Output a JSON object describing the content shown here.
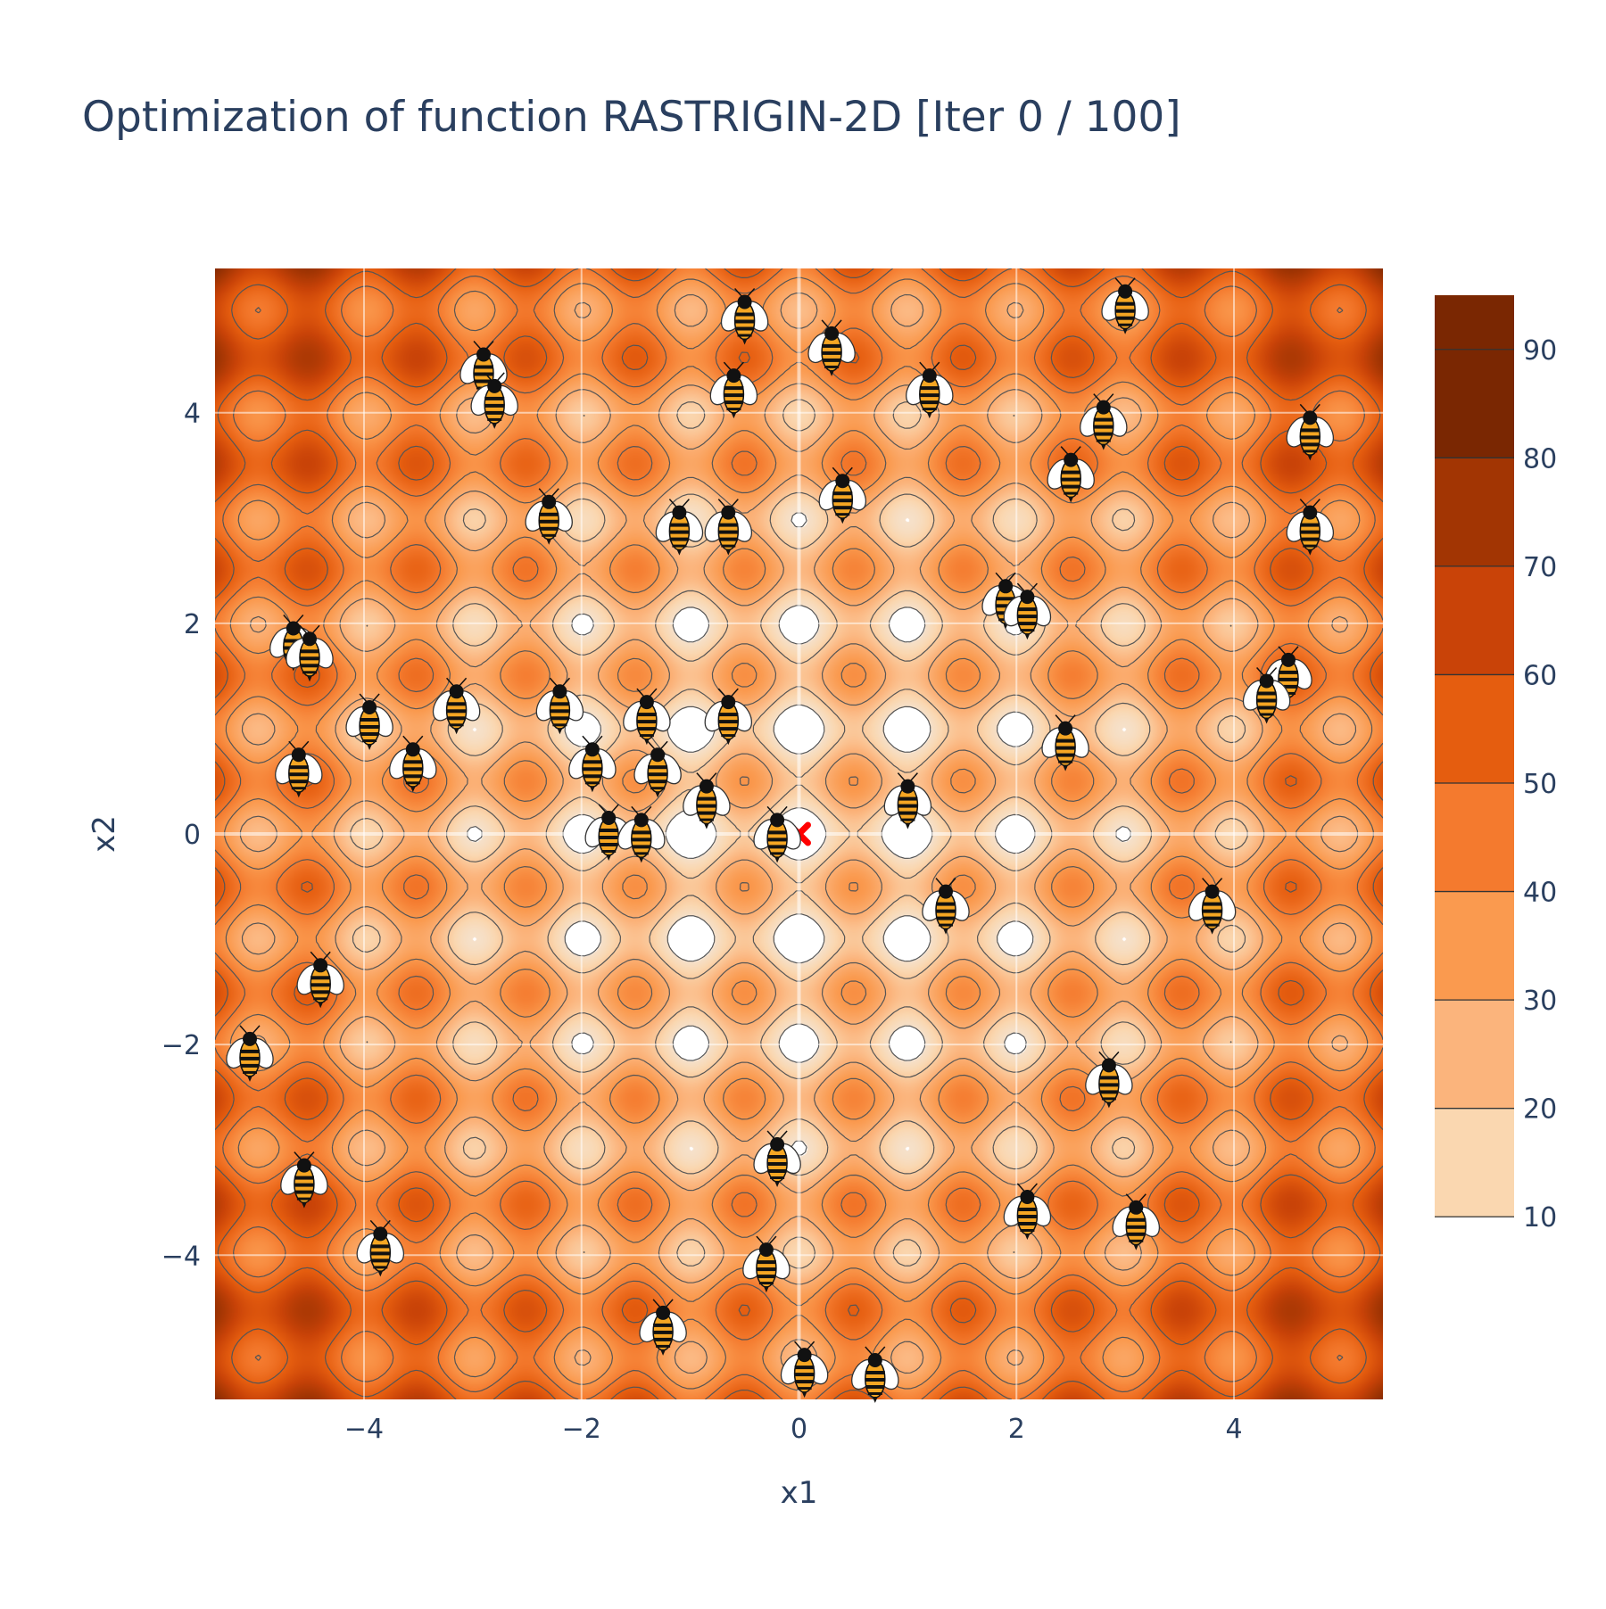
{
  "chart_data": {
    "type": "contour",
    "title": "Optimization of function RASTRIGIN-2D [Iter 0 / 100]",
    "xlabel": "x1",
    "ylabel": "x2",
    "xlim": [
      -5.37,
      5.37
    ],
    "ylim": [
      -5.37,
      5.37
    ],
    "x_ticks": [
      -4,
      -2,
      0,
      2,
      4
    ],
    "y_ticks": [
      -4,
      -2,
      0,
      2,
      4
    ],
    "x_tick_labels": [
      "−4",
      "−2",
      "0",
      "2",
      "4"
    ],
    "y_tick_labels": [
      "−4",
      "−2",
      "0",
      "2",
      "4"
    ],
    "function": "rastrigin",
    "grid": true,
    "colorbar": {
      "range": [
        5,
        95
      ],
      "levels": [
        10,
        20,
        30,
        40,
        50,
        60,
        70,
        80,
        90
      ],
      "tick_labels": [
        "10",
        "20",
        "30",
        "40",
        "50",
        "60",
        "70",
        "80",
        "90"
      ],
      "colors": [
        "#f2e8de",
        "#fad7b0",
        "#fbb47c",
        "#fa9a4f",
        "#f47a2e",
        "#e55d0f",
        "#c94308",
        "#a23503",
        "#7a2702"
      ]
    },
    "optimum_marker": {
      "x": 0.0,
      "y": 0.0,
      "symbol": "x",
      "color": "#ff0000"
    },
    "particles": [
      {
        "x": -0.5,
        "y": 4.9
      },
      {
        "x": 0.3,
        "y": 4.6
      },
      {
        "x": -0.6,
        "y": 4.2
      },
      {
        "x": 3.0,
        "y": 5.0
      },
      {
        "x": 1.2,
        "y": 4.2
      },
      {
        "x": 2.8,
        "y": 3.9
      },
      {
        "x": 4.7,
        "y": 3.8
      },
      {
        "x": 2.5,
        "y": 3.4
      },
      {
        "x": 0.4,
        "y": 3.2
      },
      {
        "x": -2.9,
        "y": 4.4
      },
      {
        "x": -2.8,
        "y": 4.1
      },
      {
        "x": -2.3,
        "y": 3.0
      },
      {
        "x": -1.1,
        "y": 2.9
      },
      {
        "x": -0.65,
        "y": 2.9
      },
      {
        "x": 4.7,
        "y": 2.9
      },
      {
        "x": 1.9,
        "y": 2.2
      },
      {
        "x": 2.1,
        "y": 2.1
      },
      {
        "x": -4.65,
        "y": 1.8
      },
      {
        "x": -4.5,
        "y": 1.7
      },
      {
        "x": 4.5,
        "y": 1.5
      },
      {
        "x": 4.3,
        "y": 1.3
      },
      {
        "x": -2.2,
        "y": 1.2
      },
      {
        "x": -3.15,
        "y": 1.2
      },
      {
        "x": -1.4,
        "y": 1.1
      },
      {
        "x": -0.65,
        "y": 1.1
      },
      {
        "x": -3.95,
        "y": 1.05
      },
      {
        "x": 2.45,
        "y": 0.85
      },
      {
        "x": -1.9,
        "y": 0.65
      },
      {
        "x": -1.3,
        "y": 0.6
      },
      {
        "x": -3.55,
        "y": 0.65
      },
      {
        "x": -4.6,
        "y": 0.6
      },
      {
        "x": -0.85,
        "y": 0.3
      },
      {
        "x": 1.0,
        "y": 0.3
      },
      {
        "x": -1.75,
        "y": 0.0
      },
      {
        "x": -1.45,
        "y": -0.02
      },
      {
        "x": -0.2,
        "y": -0.02
      },
      {
        "x": 1.35,
        "y": -0.7
      },
      {
        "x": 3.8,
        "y": -0.7
      },
      {
        "x": -4.4,
        "y": -1.4
      },
      {
        "x": -5.05,
        "y": -2.1
      },
      {
        "x": 2.85,
        "y": -2.35
      },
      {
        "x": -0.2,
        "y": -3.1
      },
      {
        "x": -4.55,
        "y": -3.3
      },
      {
        "x": 2.1,
        "y": -3.6
      },
      {
        "x": 3.1,
        "y": -3.7
      },
      {
        "x": -3.85,
        "y": -3.95
      },
      {
        "x": -0.3,
        "y": -4.1
      },
      {
        "x": -1.25,
        "y": -4.7
      },
      {
        "x": 0.05,
        "y": -5.1
      },
      {
        "x": 0.7,
        "y": -5.15
      }
    ]
  }
}
